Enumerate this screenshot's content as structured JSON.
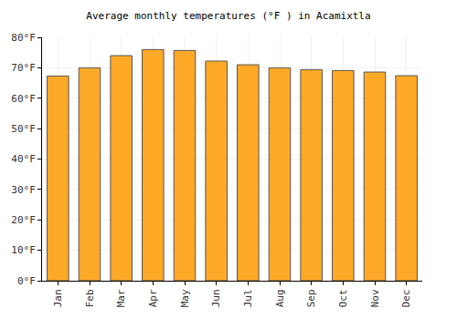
{
  "chart_data": {
    "type": "bar",
    "title": "Average monthly temperatures (°F ) in Acamixtla",
    "categories": [
      "Jan",
      "Feb",
      "Mar",
      "Apr",
      "May",
      "Jun",
      "Jul",
      "Aug",
      "Sep",
      "Oct",
      "Nov",
      "Dec"
    ],
    "values": [
      67.3,
      70.0,
      74.0,
      76.0,
      75.7,
      72.2,
      71.0,
      70.0,
      69.4,
      69.1,
      68.6,
      67.4
    ],
    "color": "#ffa928",
    "ylim": [
      0,
      80
    ],
    "yticks": [
      {
        "value": 0,
        "label": "0°F"
      },
      {
        "value": 10,
        "label": "10°F"
      },
      {
        "value": 20,
        "label": "20°F"
      },
      {
        "value": 30,
        "label": "30°F"
      },
      {
        "value": 40,
        "label": "40°F"
      },
      {
        "value": 50,
        "label": "50°F"
      },
      {
        "value": 60,
        "label": "60°F"
      },
      {
        "value": 70,
        "label": "70°F"
      },
      {
        "value": 80,
        "label": "80°F"
      }
    ],
    "grid": true
  }
}
